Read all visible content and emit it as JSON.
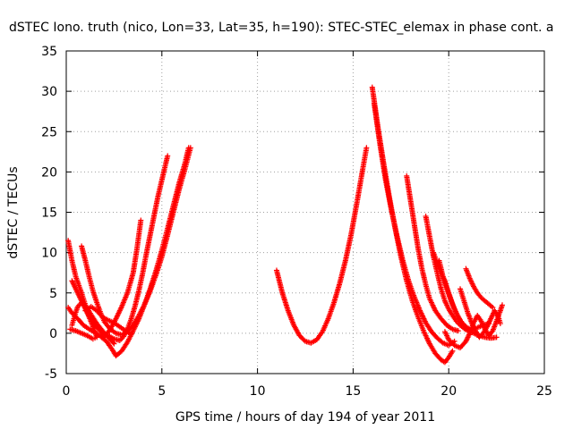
{
  "chart_data": {
    "type": "scatter",
    "title": "dSTEC Iono. truth (nico, Lon=33, Lat=35, h=190): STEC-STEC_elemax in phase cont. a",
    "xlabel": "GPS time / hours of day 194 of year 2011",
    "ylabel": "dSTEC  / TECUs",
    "xlim": [
      0,
      25
    ],
    "ylim": [
      -5,
      35
    ],
    "xticks": [
      "0",
      "5",
      "10",
      "15",
      "20",
      "25"
    ],
    "yticks": [
      "-5",
      "0",
      "5",
      "10",
      "15",
      "20",
      "25",
      "30",
      "35"
    ],
    "grid": true,
    "marker": "plus",
    "color": "#ff0000",
    "series": [
      {
        "points": [
          [
            0.1,
            11.5
          ],
          [
            0.3,
            9
          ],
          [
            0.5,
            7
          ],
          [
            0.8,
            5
          ],
          [
            1.0,
            3.5
          ],
          [
            1.3,
            2.3
          ],
          [
            1.6,
            1.2
          ],
          [
            1.9,
            0.3
          ],
          [
            2.2,
            -0.5
          ],
          [
            2.5,
            -1.3
          ]
        ]
      },
      {
        "points": [
          [
            0.1,
            3.2
          ],
          [
            0.3,
            2.5
          ],
          [
            0.6,
            1.8
          ],
          [
            0.9,
            1.0
          ],
          [
            1.2,
            0.5
          ],
          [
            1.5,
            0.1
          ],
          [
            1.8,
            -0.4
          ],
          [
            2.1,
            -1.0
          ],
          [
            2.4,
            -2
          ],
          [
            2.6,
            -2.8
          ],
          [
            2.9,
            -2.2
          ],
          [
            3.2,
            -1.1
          ],
          [
            3.5,
            0.3
          ],
          [
            3.8,
            1.8
          ],
          [
            4.1,
            3.6
          ],
          [
            4.4,
            5.6
          ],
          [
            4.7,
            7.8
          ],
          [
            5.0,
            10.3
          ],
          [
            5.3,
            13.0
          ],
          [
            5.6,
            15.8
          ],
          [
            5.9,
            18.6
          ],
          [
            6.2,
            21.0
          ],
          [
            6.4,
            23.0
          ]
        ]
      },
      {
        "points": [
          [
            0.8,
            10.8
          ],
          [
            1.0,
            9.0
          ],
          [
            1.2,
            7.0
          ],
          [
            1.4,
            5.2
          ],
          [
            1.6,
            3.8
          ],
          [
            1.8,
            2.5
          ],
          [
            2.0,
            1.4
          ],
          [
            2.3,
            0.5
          ],
          [
            2.6,
            0.0
          ],
          [
            2.9,
            -0.2
          ],
          [
            3.2,
            0.2
          ],
          [
            3.5,
            1.0
          ],
          [
            3.8,
            2.2
          ],
          [
            4.1,
            3.6
          ],
          [
            4.4,
            5.3
          ],
          [
            4.7,
            7.3
          ],
          [
            5.0,
            9.5
          ],
          [
            5.3,
            12.2
          ],
          [
            5.6,
            15.0
          ],
          [
            5.9,
            17.8
          ],
          [
            6.2,
            20.3
          ],
          [
            6.5,
            23.0
          ]
        ]
      },
      {
        "points": [
          [
            0.3,
            6.5
          ],
          [
            0.6,
            5.0
          ],
          [
            0.9,
            3.5
          ],
          [
            1.2,
            2.0
          ],
          [
            1.5,
            1.0
          ],
          [
            1.8,
            0.2
          ],
          [
            2.0,
            -0.5
          ],
          [
            2.3,
            0.5
          ],
          [
            2.6,
            1.8
          ],
          [
            2.9,
            3.3
          ],
          [
            3.2,
            5.0
          ],
          [
            3.5,
            7.5
          ],
          [
            3.7,
            10.5
          ],
          [
            3.9,
            14.0
          ]
        ]
      },
      {
        "points": [
          [
            0.2,
            0.5
          ],
          [
            0.5,
            0.3
          ],
          [
            0.8,
            0.0
          ],
          [
            1.1,
            -0.3
          ],
          [
            1.4,
            -0.7
          ],
          [
            1.6,
            -0.5
          ],
          [
            1.4,
            0.8
          ],
          [
            1.2,
            2.0
          ],
          [
            1.0,
            3.3
          ],
          [
            0.8,
            3.8
          ],
          [
            0.6,
            3.3
          ],
          [
            0.5,
            2.6
          ],
          [
            0.4,
            1.8
          ],
          [
            0.3,
            1.0
          ]
        ]
      },
      {
        "points": [
          [
            1.0,
            2.8
          ],
          [
            1.3,
            3.3
          ],
          [
            1.6,
            2.8
          ],
          [
            1.9,
            2.0
          ],
          [
            2.2,
            1.6
          ],
          [
            2.5,
            1.3
          ],
          [
            2.8,
            0.8
          ],
          [
            3.1,
            0.3
          ],
          [
            3.4,
            -0.1
          ]
        ]
      },
      {
        "points": [
          [
            2.2,
            -0.3
          ],
          [
            2.5,
            -0.7
          ],
          [
            2.8,
            -0.9
          ],
          [
            3.0,
            -0.4
          ],
          [
            3.2,
            0.5
          ],
          [
            3.4,
            1.8
          ],
          [
            3.6,
            3.4
          ],
          [
            3.8,
            5.3
          ],
          [
            4.0,
            7.5
          ],
          [
            4.2,
            10.0
          ],
          [
            4.5,
            13.5
          ],
          [
            4.8,
            17.0
          ],
          [
            5.1,
            20.0
          ],
          [
            5.3,
            22.0
          ]
        ]
      },
      {
        "points": [
          [
            11.0,
            7.8
          ],
          [
            11.3,
            5.0
          ],
          [
            11.6,
            2.8
          ],
          [
            11.9,
            1.0
          ],
          [
            12.2,
            -0.3
          ],
          [
            12.5,
            -1.0
          ],
          [
            12.8,
            -1.2
          ],
          [
            13.1,
            -0.8
          ],
          [
            13.4,
            0.2
          ],
          [
            13.7,
            1.8
          ],
          [
            14.0,
            3.8
          ],
          [
            14.3,
            6.2
          ],
          [
            14.6,
            9.0
          ],
          [
            14.9,
            12.3
          ],
          [
            15.2,
            16.2
          ],
          [
            15.5,
            20.3
          ],
          [
            15.7,
            23.0
          ]
        ]
      },
      {
        "points": [
          [
            16.0,
            30.5
          ],
          [
            16.3,
            25.5
          ],
          [
            16.6,
            21.0
          ],
          [
            16.9,
            16.8
          ],
          [
            17.2,
            13.0
          ],
          [
            17.5,
            9.5
          ],
          [
            17.8,
            6.5
          ],
          [
            18.1,
            4.0
          ],
          [
            18.4,
            2.0
          ],
          [
            18.7,
            0.2
          ],
          [
            19.0,
            -1.3
          ],
          [
            19.3,
            -2.5
          ],
          [
            19.6,
            -3.3
          ],
          [
            19.8,
            -3.6
          ],
          [
            20.0,
            -3.0
          ],
          [
            20.2,
            -2.2
          ]
        ]
      },
      {
        "points": [
          [
            16.1,
            28.5
          ],
          [
            16.4,
            23.5
          ],
          [
            16.7,
            19.0
          ],
          [
            17.0,
            15.3
          ],
          [
            17.3,
            12.0
          ],
          [
            17.6,
            9.0
          ],
          [
            17.9,
            6.5
          ],
          [
            18.2,
            4.5
          ],
          [
            18.5,
            2.8
          ],
          [
            18.8,
            1.3
          ],
          [
            19.1,
            0.2
          ],
          [
            19.4,
            -0.6
          ],
          [
            19.7,
            -1.2
          ],
          [
            20.0,
            -1.5
          ],
          [
            20.3,
            -1.0
          ]
        ]
      },
      {
        "points": [
          [
            17.8,
            19.5
          ],
          [
            18.0,
            16.5
          ],
          [
            18.2,
            13.5
          ],
          [
            18.4,
            10.5
          ],
          [
            18.6,
            8.0
          ],
          [
            18.8,
            6.0
          ],
          [
            19.0,
            4.3
          ],
          [
            19.3,
            2.8
          ],
          [
            19.6,
            1.8
          ],
          [
            19.9,
            1.0
          ],
          [
            20.2,
            0.5
          ],
          [
            20.5,
            0.3
          ]
        ]
      },
      {
        "points": [
          [
            18.8,
            14.5
          ],
          [
            19.0,
            12.0
          ],
          [
            19.2,
            9.5
          ],
          [
            19.4,
            7.5
          ],
          [
            19.6,
            5.5
          ],
          [
            19.8,
            4.0
          ],
          [
            20.0,
            3.0
          ],
          [
            20.2,
            2.2
          ],
          [
            20.4,
            1.5
          ],
          [
            20.6,
            1.0
          ],
          [
            20.8,
            0.6
          ],
          [
            21.0,
            0.3
          ]
        ]
      },
      {
        "points": [
          [
            19.2,
            10.0
          ],
          [
            19.5,
            8.0
          ],
          [
            19.8,
            6.5
          ],
          [
            20.0,
            5.0
          ],
          [
            20.2,
            3.6
          ],
          [
            20.4,
            2.5
          ],
          [
            20.6,
            1.6
          ],
          [
            20.8,
            0.9
          ],
          [
            21.0,
            0.4
          ],
          [
            21.3,
            0.0
          ],
          [
            21.6,
            -0.3
          ],
          [
            21.9,
            -0.5
          ],
          [
            22.2,
            -0.6
          ],
          [
            22.5,
            -0.5
          ]
        ]
      },
      {
        "points": [
          [
            19.5,
            9.0
          ],
          [
            19.7,
            7.0
          ],
          [
            19.9,
            5.5
          ],
          [
            20.1,
            4.2
          ],
          [
            20.3,
            3.0
          ],
          [
            20.5,
            2.0
          ],
          [
            20.7,
            1.3
          ],
          [
            20.9,
            0.8
          ],
          [
            21.1,
            0.5
          ],
          [
            21.3,
            0.5
          ],
          [
            21.5,
            0.7
          ],
          [
            21.8,
            1.0
          ],
          [
            22.1,
            1.2
          ]
        ]
      },
      {
        "points": [
          [
            20.9,
            8.0
          ],
          [
            21.1,
            6.8
          ],
          [
            21.3,
            5.8
          ],
          [
            21.5,
            5.0
          ],
          [
            21.7,
            4.4
          ],
          [
            21.9,
            4.0
          ],
          [
            22.1,
            3.6
          ],
          [
            22.3,
            3.2
          ]
        ]
      },
      {
        "points": [
          [
            19.8,
            0.2
          ],
          [
            20.0,
            -0.8
          ],
          [
            20.3,
            -1.5
          ],
          [
            20.6,
            -1.8
          ],
          [
            20.9,
            -1.0
          ],
          [
            21.1,
            0.0
          ],
          [
            21.3,
            1.3
          ],
          [
            21.5,
            2.2
          ],
          [
            21.7,
            1.5
          ],
          [
            21.9,
            0.5
          ],
          [
            22.1,
            -0.3
          ],
          [
            22.3,
            0.3
          ],
          [
            22.5,
            1.5
          ],
          [
            22.7,
            2.8
          ],
          [
            22.8,
            3.5
          ]
        ]
      },
      {
        "points": [
          [
            20.6,
            5.5
          ],
          [
            20.8,
            4.0
          ],
          [
            21.0,
            2.5
          ],
          [
            21.2,
            1.3
          ],
          [
            21.4,
            0.3
          ],
          [
            21.6,
            -0.5
          ],
          [
            21.8,
            0.0
          ],
          [
            22.0,
            0.8
          ],
          [
            22.2,
            1.8
          ],
          [
            22.4,
            2.8
          ],
          [
            22.6,
            2.0
          ],
          [
            22.7,
            1.2
          ]
        ]
      }
    ]
  }
}
